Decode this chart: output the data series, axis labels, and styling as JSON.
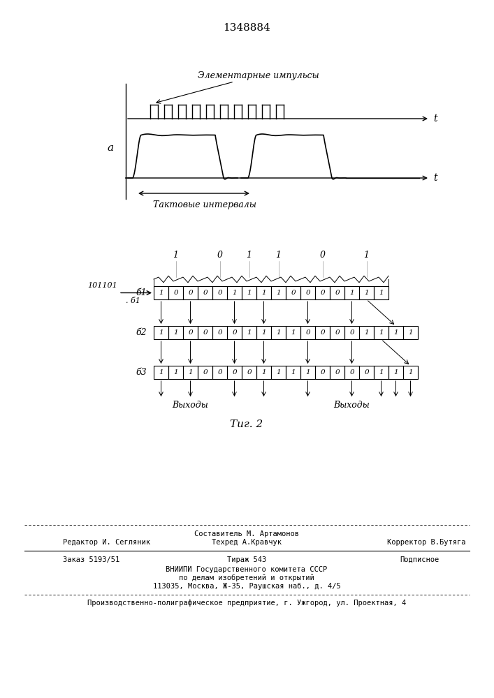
{
  "title": "1348884",
  "fig_label": "Τиг. 2",
  "background": "#ffffff",
  "impulse_label": "Элементарные импульсы",
  "takt_label": "Тактовые интервалы",
  "a_label": "а",
  "input_label": "101101",
  "b1_label": "б1",
  "b2_label": "б2",
  "b3_label": "б3",
  "vyhody_label": "Выходы",
  "row_b1": [
    1,
    0,
    0,
    0,
    0,
    1,
    1,
    1,
    1,
    0,
    0,
    0,
    0,
    1,
    1,
    1
  ],
  "row_b2": [
    1,
    1,
    0,
    0,
    0,
    0,
    1,
    1,
    1,
    1,
    0,
    0,
    0,
    0,
    1,
    1,
    1,
    1
  ],
  "row_b3": [
    1,
    1,
    1,
    0,
    0,
    0,
    0,
    1,
    1,
    1,
    1,
    0,
    0,
    0,
    0,
    1,
    1,
    1
  ],
  "col_labels": [
    "1",
    "0",
    "1",
    "1",
    "0",
    "1"
  ],
  "credits_editor": "Редактор И. Сегляник",
  "credits_compiler": "Составитель М. Артамонов",
  "credits_tech": "Техред А.Кравчук",
  "credits_corrector": "Корректор В.Бутяга",
  "credits_order": "Заказ 5193/51",
  "credits_tirazh": "Тираж 543",
  "credits_podp": "Подписное",
  "credits_vniip1": "ВНИИПИ Государственного комитета СССР",
  "credits_vniip2": "по делам изобретений и открытий",
  "credits_vniip3": "113035, Москва, Ж-35, Раушская наб., д. 4/5",
  "credits_proizv": "Производственно-полиграфическое предприятие, г. Ужгород, ул. Проектная, 4"
}
